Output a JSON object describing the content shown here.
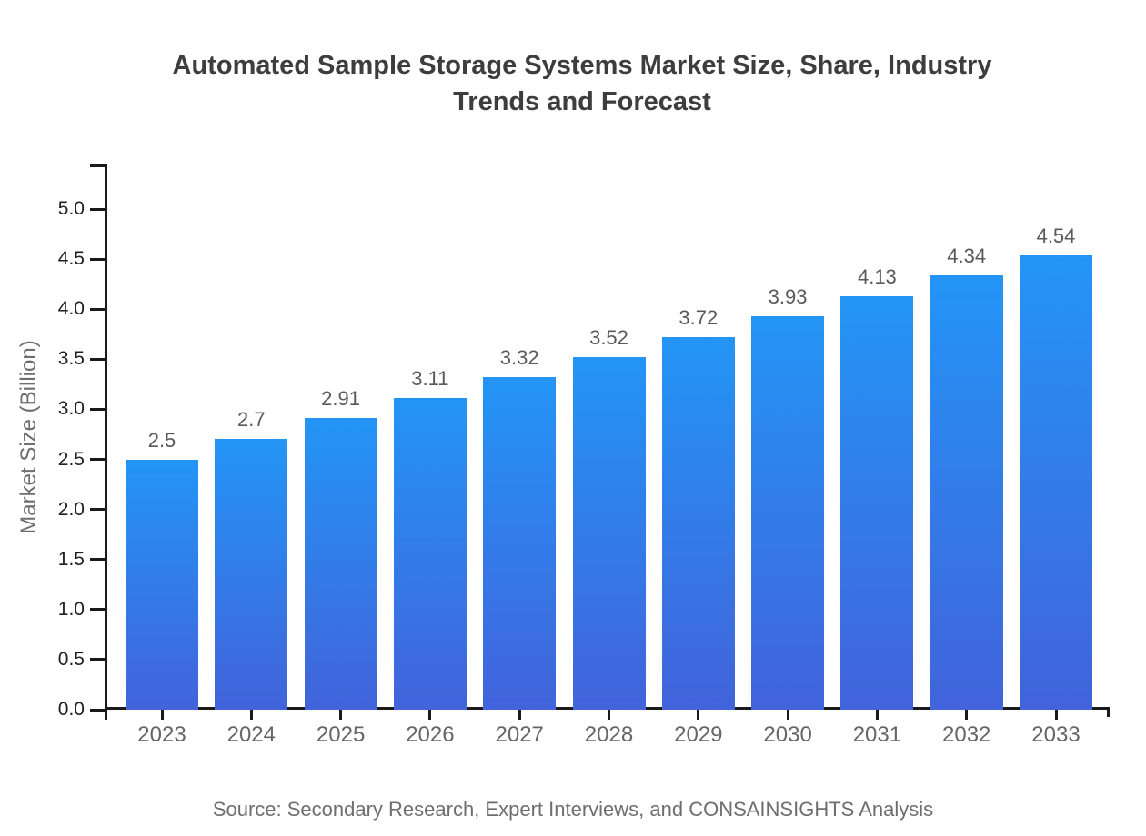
{
  "title": "Automated Sample Storage Systems Market Size, Share, Industry Trends and Forecast",
  "source": "Source: Secondary Research, Expert Interviews, and CONSAINSIGHTS Analysis",
  "chart_data": {
    "type": "bar",
    "title": "Automated Sample Storage Systems Market Size, Share, Industry Trends and Forecast",
    "categories": [
      "2023",
      "2024",
      "2025",
      "2026",
      "2027",
      "2028",
      "2029",
      "2030",
      "2031",
      "2032",
      "2033"
    ],
    "values": [
      2.5,
      2.7,
      2.91,
      3.11,
      3.32,
      3.52,
      3.72,
      3.93,
      4.13,
      4.34,
      4.54
    ],
    "value_labels": [
      "2.5",
      "2.7",
      "2.91",
      "3.11",
      "3.32",
      "3.52",
      "3.72",
      "3.93",
      "4.13",
      "4.34",
      "4.54"
    ],
    "series": [
      {
        "name": "Market Size",
        "values": [
          2.5,
          2.7,
          2.91,
          3.11,
          3.32,
          3.52,
          3.72,
          3.93,
          4.13,
          4.34,
          4.54
        ]
      }
    ],
    "xlabel": "",
    "ylabel": "Market Size (Billion)",
    "ylim": [
      0,
      5.45
    ],
    "yticks": [
      "0.0",
      "0.5",
      "1.0",
      "1.5",
      "2.0",
      "2.5",
      "3.0",
      "3.5",
      "4.0",
      "4.5",
      "5.0"
    ],
    "grid": false,
    "legend": false,
    "bar_gradient": {
      "top": "#2395F6",
      "bottom": "#4263DB"
    },
    "colors": {
      "axis": "#1a1a1a",
      "ytick_label": "#1f1f1f",
      "xtick_label": "#666666",
      "value_label": "#595959",
      "axis_title": "#6e6e6e",
      "title": "#3d3d3d",
      "source": "#6e6e6e"
    }
  }
}
